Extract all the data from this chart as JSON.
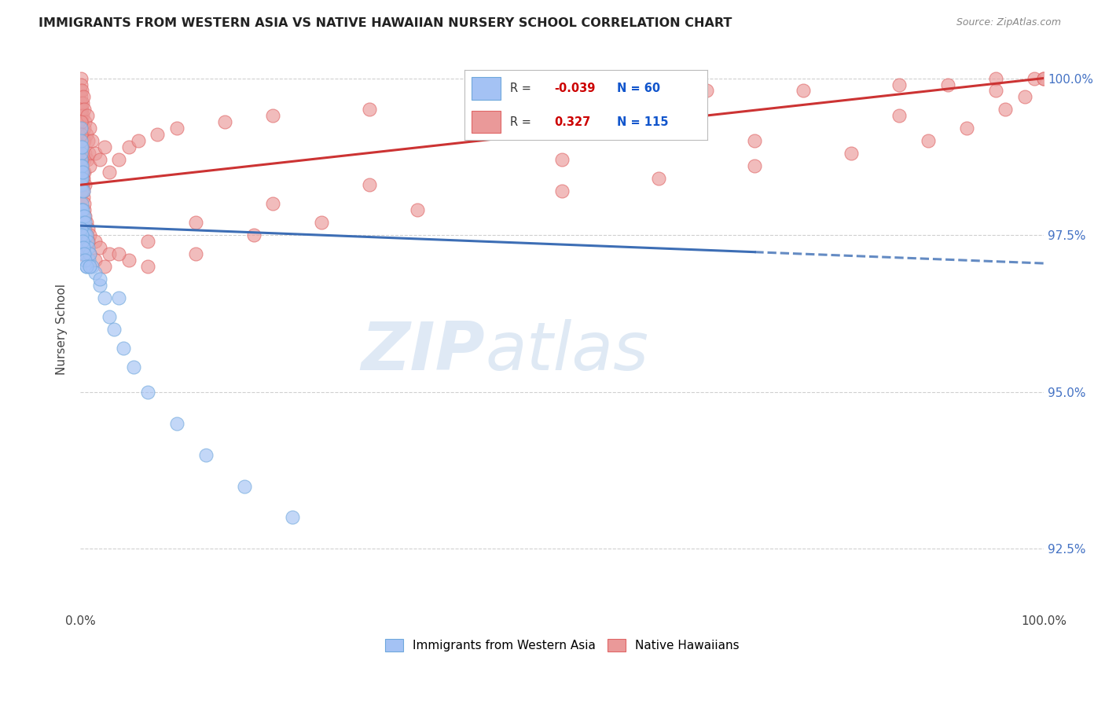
{
  "title": "IMMIGRANTS FROM WESTERN ASIA VS NATIVE HAWAIIAN NURSERY SCHOOL CORRELATION CHART",
  "source": "Source: ZipAtlas.com",
  "ylabel": "Nursery School",
  "ytick_labels": [
    "92.5%",
    "95.0%",
    "97.5%",
    "100.0%"
  ],
  "ytick_values": [
    92.5,
    95.0,
    97.5,
    100.0
  ],
  "legend_blue_label": "Immigrants from Western Asia",
  "legend_pink_label": "Native Hawaiians",
  "R_blue": -0.039,
  "N_blue": 60,
  "R_pink": 0.327,
  "N_pink": 115,
  "blue_color": "#a4c2f4",
  "blue_edge_color": "#6fa8dc",
  "pink_color": "#ea9999",
  "pink_edge_color": "#e06666",
  "blue_line_color": "#3d6eb5",
  "pink_line_color": "#cc3333",
  "blue_line": {
    "x0": 0.0,
    "x1": 100.0,
    "y0": 97.65,
    "y1": 97.05,
    "solid_end": 70.0
  },
  "pink_line": {
    "x0": 0.0,
    "x1": 100.0,
    "y0": 98.3,
    "y1": 100.0
  },
  "blue_scatter_x": [
    0.05,
    0.05,
    0.05,
    0.05,
    0.08,
    0.08,
    0.08,
    0.1,
    0.1,
    0.1,
    0.12,
    0.12,
    0.15,
    0.15,
    0.15,
    0.18,
    0.18,
    0.2,
    0.2,
    0.2,
    0.25,
    0.25,
    0.3,
    0.3,
    0.3,
    0.35,
    0.4,
    0.4,
    0.45,
    0.5,
    0.5,
    0.6,
    0.6,
    0.7,
    0.8,
    0.9,
    1.0,
    1.2,
    1.5,
    2.0,
    2.5,
    3.0,
    3.5,
    4.5,
    5.5,
    7.0,
    10.0,
    13.0,
    17.0,
    22.0,
    0.1,
    0.15,
    0.2,
    0.3,
    0.4,
    0.5,
    0.6,
    1.0,
    2.0,
    4.0
  ],
  "blue_scatter_y": [
    99.2,
    98.9,
    98.7,
    98.5,
    98.8,
    98.6,
    98.4,
    99.0,
    98.3,
    97.9,
    98.6,
    98.2,
    98.9,
    98.0,
    97.7,
    98.4,
    97.9,
    98.5,
    97.8,
    97.5,
    97.9,
    97.6,
    98.2,
    97.7,
    97.4,
    97.6,
    97.8,
    97.3,
    97.5,
    97.7,
    97.2,
    97.5,
    97.0,
    97.4,
    97.3,
    97.1,
    97.2,
    97.0,
    96.9,
    96.7,
    96.5,
    96.2,
    96.0,
    95.7,
    95.4,
    95.0,
    94.5,
    94.0,
    93.5,
    93.0,
    97.6,
    97.5,
    97.4,
    97.3,
    97.2,
    97.1,
    97.0,
    97.0,
    96.8,
    96.5
  ],
  "pink_scatter_x": [
    0.02,
    0.03,
    0.05,
    0.05,
    0.05,
    0.07,
    0.07,
    0.08,
    0.08,
    0.1,
    0.1,
    0.1,
    0.12,
    0.12,
    0.15,
    0.15,
    0.15,
    0.18,
    0.18,
    0.2,
    0.2,
    0.2,
    0.25,
    0.25,
    0.3,
    0.3,
    0.3,
    0.35,
    0.35,
    0.4,
    0.4,
    0.4,
    0.5,
    0.5,
    0.5,
    0.6,
    0.7,
    0.7,
    0.8,
    0.9,
    1.0,
    1.0,
    1.2,
    1.5,
    2.0,
    2.5,
    3.0,
    4.0,
    5.0,
    6.0,
    8.0,
    10.0,
    15.0,
    20.0,
    30.0,
    45.0,
    55.0,
    65.0,
    75.0,
    85.0,
    90.0,
    95.0,
    99.0,
    0.15,
    0.2,
    0.3,
    0.4,
    0.6,
    0.8,
    1.0,
    1.5,
    2.0,
    3.0,
    5.0,
    7.0,
    12.0,
    18.0,
    25.0,
    35.0,
    50.0,
    60.0,
    70.0,
    80.0,
    88.0,
    92.0,
    96.0,
    98.0,
    100.0,
    0.05,
    0.08,
    0.1,
    0.15,
    0.2,
    0.25,
    0.3,
    0.4,
    0.5,
    0.6,
    0.8,
    1.0,
    1.5,
    2.5,
    4.0,
    7.0,
    12.0,
    20.0,
    30.0,
    50.0,
    70.0,
    85.0,
    95.0,
    100.0,
    0.05,
    0.1
  ],
  "pink_scatter_y": [
    99.8,
    100.0,
    99.5,
    99.2,
    98.9,
    99.7,
    99.3,
    99.6,
    99.0,
    99.9,
    99.4,
    98.7,
    99.5,
    99.1,
    99.8,
    99.2,
    98.6,
    99.3,
    98.9,
    99.6,
    99.1,
    98.5,
    99.4,
    98.8,
    99.7,
    99.0,
    98.4,
    99.2,
    98.7,
    99.5,
    99.0,
    98.5,
    99.3,
    98.8,
    98.3,
    99.1,
    99.4,
    98.7,
    99.0,
    98.8,
    99.2,
    98.6,
    99.0,
    98.8,
    98.7,
    98.9,
    98.5,
    98.7,
    98.9,
    99.0,
    99.1,
    99.2,
    99.3,
    99.4,
    99.5,
    99.6,
    99.7,
    99.8,
    99.8,
    99.9,
    99.9,
    100.0,
    100.0,
    98.5,
    98.3,
    98.1,
    97.9,
    97.7,
    97.6,
    97.5,
    97.4,
    97.3,
    97.2,
    97.1,
    97.0,
    97.2,
    97.5,
    97.7,
    97.9,
    98.2,
    98.4,
    98.6,
    98.8,
    99.0,
    99.2,
    99.5,
    99.7,
    100.0,
    99.3,
    99.1,
    98.9,
    98.7,
    98.5,
    98.4,
    98.2,
    98.0,
    97.8,
    97.5,
    97.4,
    97.2,
    97.1,
    97.0,
    97.2,
    97.4,
    97.7,
    98.0,
    98.3,
    98.7,
    99.0,
    99.4,
    99.8,
    100.0,
    97.3,
    97.2
  ],
  "watermark_zip": "ZIP",
  "watermark_atlas": "atlas",
  "xlim": [
    0,
    100
  ],
  "ylim": [
    91.5,
    100.5
  ],
  "background_color": "#ffffff",
  "grid_color": "#d0d0d0"
}
